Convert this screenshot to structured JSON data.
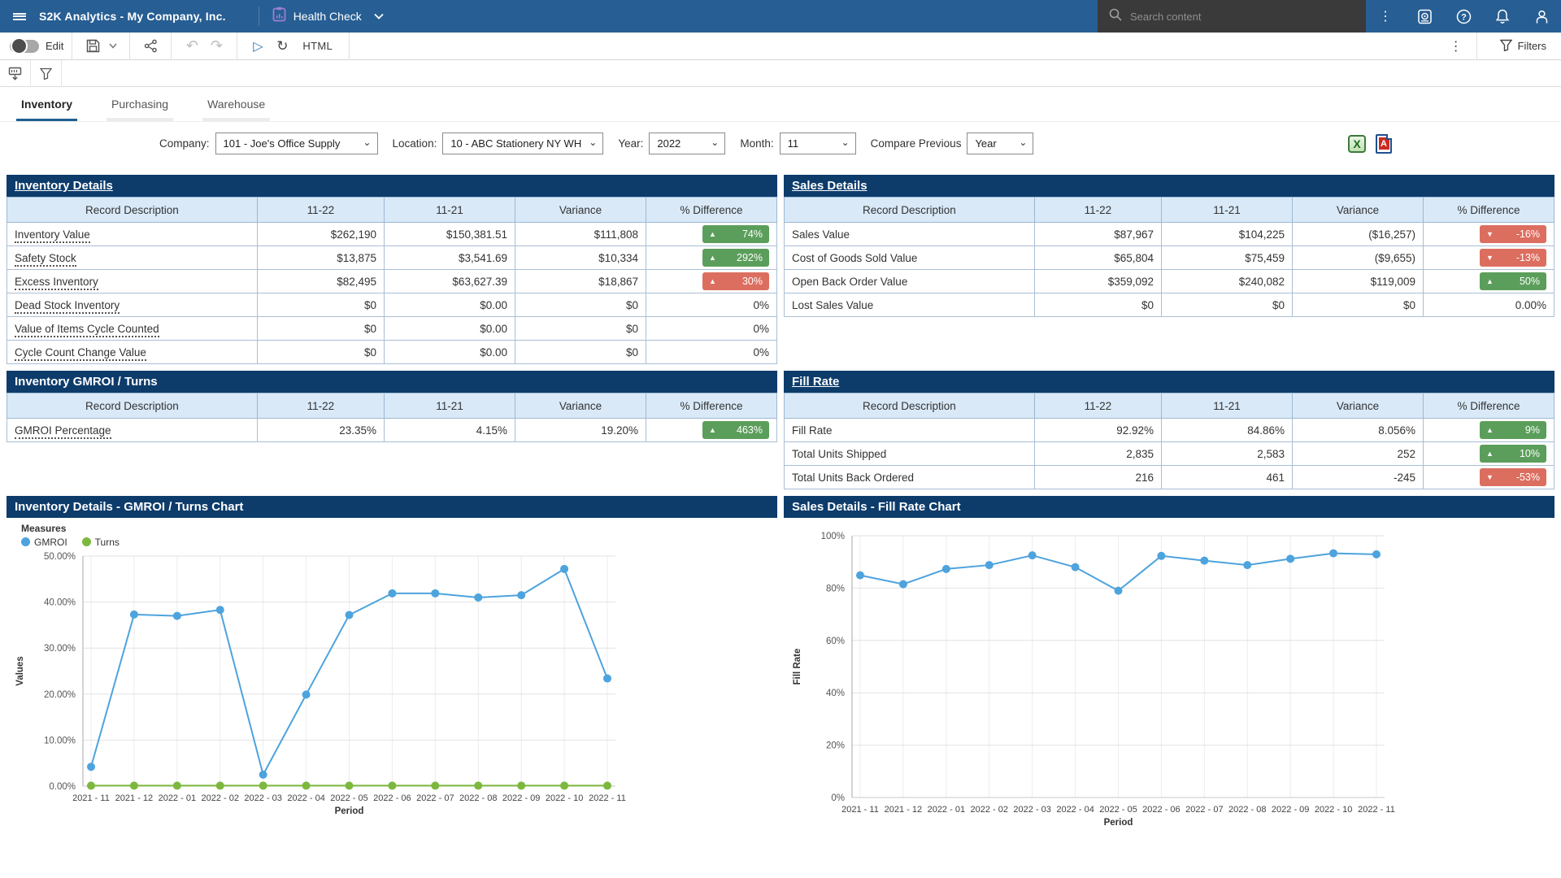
{
  "app_bar": {
    "title": "S2K Analytics - My Company, Inc.",
    "report_name": "Health Check",
    "search_placeholder": "Search content"
  },
  "toolbar": {
    "edit_label": "Edit",
    "html_label": "HTML",
    "filters_label": "Filters"
  },
  "tabs": [
    {
      "label": "Inventory",
      "active": true
    },
    {
      "label": "Purchasing",
      "active": false
    },
    {
      "label": "Warehouse",
      "active": false
    }
  ],
  "filters": {
    "company_label": "Company:",
    "company_value": "101 - Joe's Office Supply",
    "location_label": "Location:",
    "location_value": "10 - ABC Stationery NY WH",
    "year_label": "Year:",
    "year_value": "2022",
    "month_label": "Month:",
    "month_value": "11",
    "compare_label": "Compare Previous",
    "compare_value": "Year"
  },
  "icons": {
    "excel_export": "excel-export-icon",
    "pdf_export": "pdf-export-icon"
  },
  "colors": {
    "app_bar_blue": "#275e93",
    "section_navy": "#0d3c6b",
    "table_header_blue": "#d9e9f8",
    "badge_green": "#5b9e5b",
    "badge_red": "#dc6e60",
    "line_blue": "#4da3dd",
    "line_green": "#7cb83e"
  },
  "tables": {
    "inventory_details": {
      "title": "Inventory Details",
      "title_link": true,
      "headers": [
        "Record Description",
        "11-22",
        "11-21",
        "Variance",
        "% Difference"
      ],
      "rows": [
        {
          "label": "Inventory Value",
          "link": true,
          "values": [
            "$262,190",
            "$150,381.51",
            "$111,808"
          ],
          "diff": {
            "text": "74%",
            "dir": "up",
            "color": "green"
          }
        },
        {
          "label": "Safety Stock",
          "link": true,
          "values": [
            "$13,875",
            "$3,541.69",
            "$10,334"
          ],
          "diff": {
            "text": "292%",
            "dir": "up",
            "color": "green"
          }
        },
        {
          "label": "Excess Inventory",
          "link": true,
          "values": [
            "$82,495",
            "$63,627.39",
            "$18,867"
          ],
          "diff": {
            "text": "30%",
            "dir": "up",
            "color": "red"
          }
        },
        {
          "label": "Dead Stock Inventory",
          "link": true,
          "values": [
            "$0",
            "$0.00",
            "$0"
          ],
          "diff": {
            "text": "0%"
          }
        },
        {
          "label": "Value of Items Cycle Counted",
          "link": true,
          "values": [
            "$0",
            "$0.00",
            "$0"
          ],
          "diff": {
            "text": "0%"
          }
        },
        {
          "label": "Cycle Count Change Value",
          "link": true,
          "values": [
            "$0",
            "$0.00",
            "$0"
          ],
          "diff": {
            "text": "0%"
          }
        }
      ]
    },
    "sales_details": {
      "title": "Sales Details",
      "title_link": true,
      "headers": [
        "Record Description",
        "11-22",
        "11-21",
        "Variance",
        "% Difference"
      ],
      "rows": [
        {
          "label": "Sales Value",
          "link": false,
          "values": [
            "$87,967",
            "$104,225",
            "($16,257)"
          ],
          "diff": {
            "text": "-16%",
            "dir": "down",
            "color": "red"
          }
        },
        {
          "label": "Cost of Goods Sold Value",
          "link": false,
          "values": [
            "$65,804",
            "$75,459",
            "($9,655)"
          ],
          "diff": {
            "text": "-13%",
            "dir": "down",
            "color": "red"
          }
        },
        {
          "label": "Open Back Order Value",
          "link": false,
          "values": [
            "$359,092",
            "$240,082",
            "$119,009"
          ],
          "diff": {
            "text": "50%",
            "dir": "up",
            "color": "green"
          }
        },
        {
          "label": "Lost Sales Value",
          "link": false,
          "values": [
            "$0",
            "$0",
            "$0"
          ],
          "diff": {
            "text": "0.00%"
          }
        }
      ]
    },
    "gmroi_turns": {
      "title": "Inventory GMROI / Turns",
      "title_link": false,
      "headers": [
        "Record Description",
        "11-22",
        "11-21",
        "Variance",
        "% Difference"
      ],
      "rows": [
        {
          "label": "GMROI Percentage",
          "link": true,
          "values": [
            "23.35%",
            "4.15%",
            "19.20%"
          ],
          "diff": {
            "text": "463%",
            "dir": "up",
            "color": "green"
          }
        }
      ]
    },
    "fill_rate": {
      "title": "Fill Rate",
      "title_link": true,
      "headers": [
        "Record Description",
        "11-22",
        "11-21",
        "Variance",
        "% Difference"
      ],
      "rows": [
        {
          "label": "Fill Rate",
          "link": false,
          "values": [
            "92.92%",
            "84.86%",
            "8.056%"
          ],
          "diff": {
            "text": "9%",
            "dir": "up",
            "color": "green"
          }
        },
        {
          "label": "Total Units Shipped",
          "link": false,
          "values": [
            "2,835",
            "2,583",
            "252"
          ],
          "diff": {
            "text": "10%",
            "dir": "up",
            "color": "green"
          }
        },
        {
          "label": "Total Units Back Ordered",
          "link": false,
          "values": [
            "216",
            "461",
            "-245"
          ],
          "diff": {
            "text": "-53%",
            "dir": "down",
            "color": "red"
          }
        }
      ]
    }
  },
  "chart_data": [
    {
      "type": "line",
      "title": "Inventory Details - GMROI / Turns Chart",
      "legend_title": "Measures",
      "xlabel": "Period",
      "ylabel": "Values",
      "x": [
        "2021 - 11",
        "2021 - 12",
        "2022 - 01",
        "2022 - 02",
        "2022 - 03",
        "2022 - 04",
        "2022 - 05",
        "2022 - 06",
        "2022 - 07",
        "2022 - 08",
        "2022 - 09",
        "2022 - 10",
        "2022 - 11"
      ],
      "ylim": [
        0,
        50
      ],
      "yticks": [
        0,
        10,
        20,
        30,
        40,
        50
      ],
      "ytick_labels": [
        "0.00%",
        "10.00%",
        "20.00%",
        "30.00%",
        "40.00%",
        "50.00%"
      ],
      "grid": true,
      "legend_position": "top-left",
      "series": [
        {
          "name": "GMROI",
          "color": "#4da3dd",
          "values": [
            4.2,
            37.3,
            37.0,
            38.3,
            2.5,
            19.9,
            37.2,
            41.9,
            41.9,
            41.0,
            41.5,
            47.2,
            23.4
          ]
        },
        {
          "name": "Turns",
          "color": "#7cb83e",
          "values": [
            0.1,
            0.1,
            0.1,
            0.1,
            0.1,
            0.1,
            0.1,
            0.1,
            0.1,
            0.1,
            0.1,
            0.1,
            0.1
          ]
        }
      ]
    },
    {
      "type": "line",
      "title": "Sales Details - Fill Rate Chart",
      "xlabel": "Period",
      "ylabel": "Fill Rate",
      "x": [
        "2021 - 11",
        "2021 - 12",
        "2022 - 01",
        "2022 - 02",
        "2022 - 03",
        "2022 - 04",
        "2022 - 05",
        "2022 - 06",
        "2022 - 07",
        "2022 - 08",
        "2022 - 09",
        "2022 - 10",
        "2022 - 11"
      ],
      "ylim": [
        0,
        100
      ],
      "yticks": [
        0,
        20,
        40,
        60,
        80,
        100
      ],
      "ytick_labels": [
        "0%",
        "20%",
        "40%",
        "60%",
        "80%",
        "100%"
      ],
      "grid": true,
      "series": [
        {
          "name": "Fill Rate",
          "color": "#4da3dd",
          "values": [
            84.9,
            81.5,
            87.3,
            88.8,
            92.5,
            88.0,
            79.0,
            92.3,
            90.5,
            88.8,
            91.2,
            93.3,
            92.9
          ]
        }
      ]
    }
  ]
}
